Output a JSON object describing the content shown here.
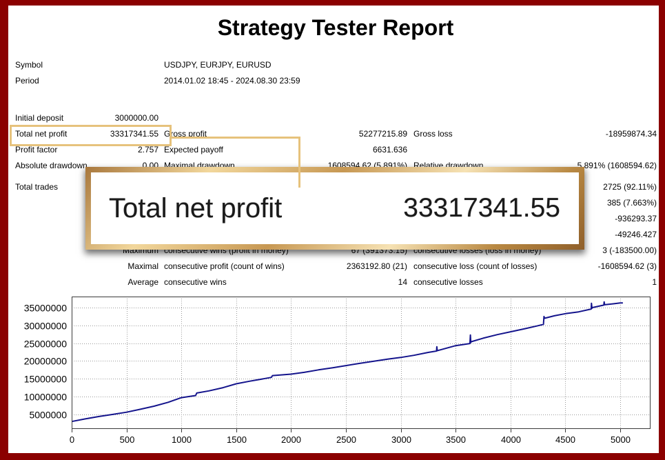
{
  "colors": {
    "frame": "#8b0000",
    "highlight": "#e6c27c"
  },
  "report": {
    "title": "Strategy Tester Report",
    "symbol_label": "Symbol",
    "symbol_value": "USDJPY, EURJPY, EURUSD",
    "period_label": "Period",
    "period_value": "2014.01.02 18:45 - 2024.08.30 23:59",
    "rows": [
      {
        "c1": "Initial deposit",
        "c2": "3000000.00"
      },
      {
        "c1": "Total net profit",
        "c2": "33317341.55",
        "c3": "Gross profit",
        "c4": "52277215.89",
        "c5": "Gross loss",
        "c6": "-18959874.34"
      },
      {
        "c1": "Profit factor",
        "c2": "2.757",
        "c3": "Expected payoff",
        "c4": "6631.636"
      },
      {
        "c1": "Absolute drawdown",
        "c2": "0.00",
        "c3": "Maximal drawdown",
        "c4": "1608594.62 (5.891%)",
        "c5": "Relative drawdown",
        "c6": "5.891% (1608594.62)"
      },
      {
        "c1": "Total trades",
        "c6": "2725 (92.11%)"
      },
      {
        "c6": "385 (7.663%)"
      },
      {
        "c6": "-936293.37"
      },
      {
        "c6": "-49246.427"
      },
      {
        "c2": "Maximum",
        "c3": "consecutive wins (profit in money)",
        "c4": "67 (391373.15)",
        "c5": "consecutive losses (loss in money)",
        "c6": "3 (-183500.00)"
      },
      {
        "c2": "Maximal",
        "c3": "consecutive profit (count of wins)",
        "c4": "2363192.80 (21)",
        "c5": "consecutive loss (count of losses)",
        "c6": "-1608594.62 (3)"
      },
      {
        "c2": "Average",
        "c3": "consecutive wins",
        "c4": "14",
        "c5": "consecutive losses",
        "c6": "1"
      }
    ]
  },
  "callout": {
    "label": "Total net profit",
    "value": "33317341.55"
  },
  "chart_data": {
    "type": "line",
    "xlim": [
      0,
      5276
    ],
    "ylim": [
      900000,
      38100000
    ],
    "x_ticks": [
      0,
      500,
      1000,
      1500,
      2000,
      2500,
      3000,
      3500,
      4000,
      4500,
      5000
    ],
    "y_ticks": [
      5000000,
      10000000,
      15000000,
      20000000,
      25000000,
      30000000,
      35000000
    ],
    "grid": true,
    "series": [
      {
        "color": "#14148c",
        "x": [
          0,
          120,
          250,
          380,
          500,
          620,
          750,
          880,
          1000,
          1130,
          1140,
          1250,
          1380,
          1500,
          1620,
          1750,
          1820,
          1830,
          2000,
          2120,
          2250,
          2380,
          2500,
          2620,
          2750,
          2880,
          3000,
          3120,
          3250,
          3325,
          3328,
          3332,
          3500,
          3630,
          3634,
          3638,
          3642,
          3750,
          3880,
          4000,
          4120,
          4250,
          4300,
          4305,
          4310,
          4400,
          4500,
          4620,
          4735,
          4738,
          4742,
          4746,
          4850,
          4853,
          4857,
          4950,
          5000,
          5024
        ],
        "values": [
          3000000,
          3700000,
          4400000,
          5000000,
          5600000,
          6400000,
          7300000,
          8400000,
          9700000,
          10300000,
          11000000,
          11600000,
          12500000,
          13600000,
          14300000,
          15000000,
          15400000,
          15900000,
          16300000,
          16800000,
          17500000,
          18100000,
          18700000,
          19300000,
          19900000,
          20500000,
          21000000,
          21600000,
          22400000,
          22800000,
          24000000,
          22900000,
          24300000,
          24900000,
          27300000,
          25200000,
          25400000,
          26400000,
          27400000,
          28200000,
          29000000,
          29900000,
          30300000,
          32500000,
          32000000,
          32700000,
          33300000,
          33800000,
          34600000,
          36200000,
          34800000,
          35000000,
          35700000,
          36600000,
          35800000,
          36100000,
          36300000,
          36317341.55
        ]
      }
    ]
  }
}
